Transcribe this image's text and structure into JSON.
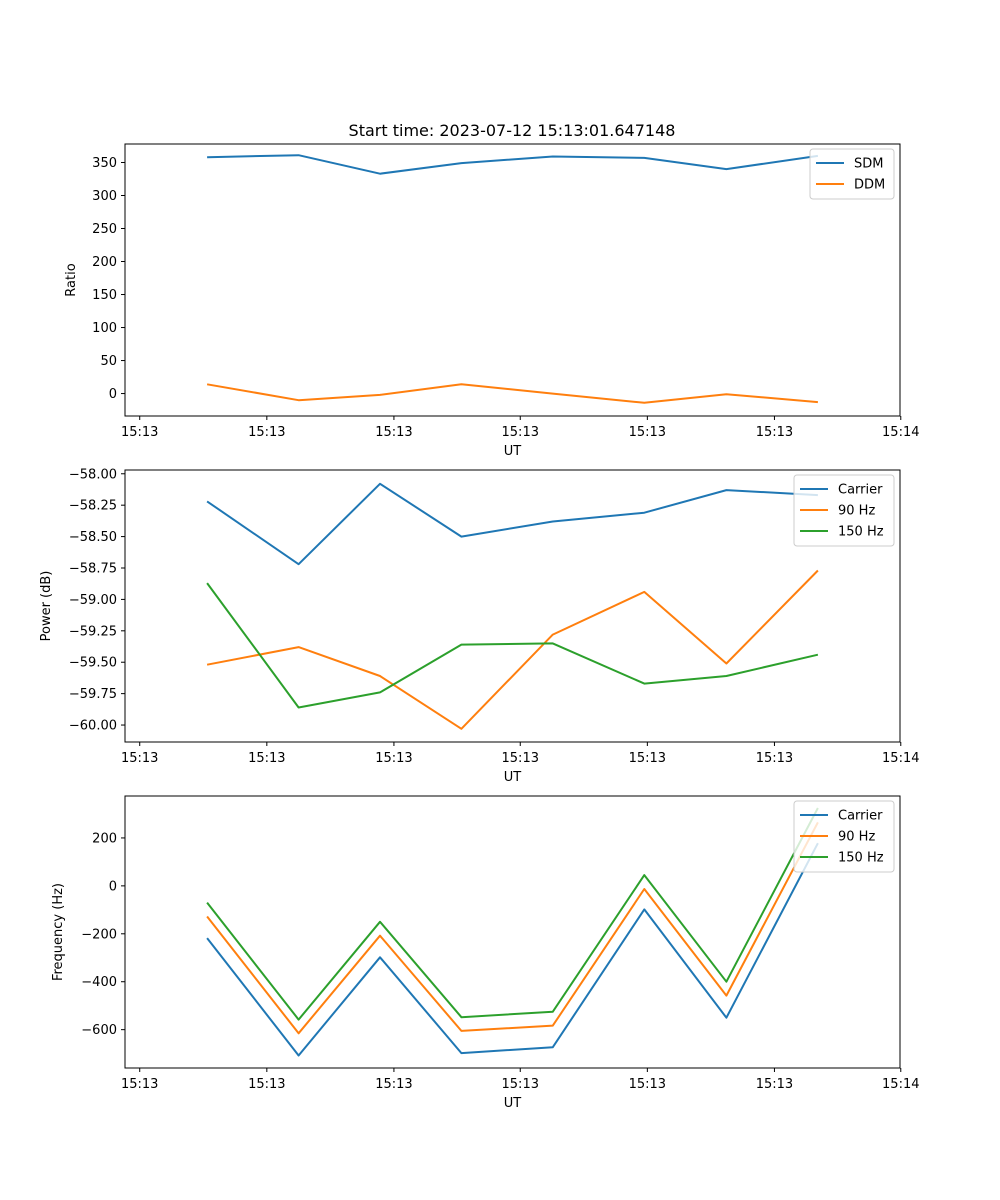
{
  "figure_title": "Start time: 2023-07-12 15:13:01.647148",
  "chart_data": [
    {
      "type": "line",
      "title": "Start time: 2023-07-12 15:13:01.647148",
      "xlabel": "UT",
      "ylabel": "Ratio",
      "xlim": [
        0,
        100
      ],
      "ylim": [
        -34,
        378
      ],
      "x": [
        10.6,
        22.4,
        32.9,
        43.4,
        55.2,
        67.0,
        77.6,
        89.4
      ],
      "xticks": [
        {
          "value": 1.9,
          "label": "15:13"
        },
        {
          "value": 18.3,
          "label": "15:13"
        },
        {
          "value": 34.7,
          "label": "15:13"
        },
        {
          "value": 51.0,
          "label": "15:13"
        },
        {
          "value": 67.4,
          "label": "15:13"
        },
        {
          "value": 83.8,
          "label": "15:13"
        },
        {
          "value": 100.1,
          "label": "15:14"
        }
      ],
      "yticks": [
        {
          "value": 0,
          "label": "0"
        },
        {
          "value": 50,
          "label": "50"
        },
        {
          "value": 100,
          "label": "100"
        },
        {
          "value": 150,
          "label": "150"
        },
        {
          "value": 200,
          "label": "200"
        },
        {
          "value": 250,
          "label": "250"
        },
        {
          "value": 300,
          "label": "300"
        },
        {
          "value": 350,
          "label": "350"
        }
      ],
      "legend_position": "top-right",
      "series": [
        {
          "name": "SDM",
          "color": "#1f77b4",
          "values": [
            358,
            361,
            333,
            349,
            359,
            357,
            340,
            360
          ]
        },
        {
          "name": "DDM",
          "color": "#ff7f0e",
          "values": [
            14,
            -10,
            -2,
            14,
            0,
            -14,
            -1,
            -13
          ]
        }
      ]
    },
    {
      "type": "line",
      "xlabel": "UT",
      "ylabel": "Power (dB)",
      "xlim": [
        0,
        100
      ],
      "ylim": [
        -60.135,
        -57.97
      ],
      "x": [
        10.6,
        22.4,
        32.9,
        43.4,
        55.2,
        67.0,
        77.6,
        89.4
      ],
      "xticks": [
        {
          "value": 1.9,
          "label": "15:13"
        },
        {
          "value": 18.3,
          "label": "15:13"
        },
        {
          "value": 34.7,
          "label": "15:13"
        },
        {
          "value": 51.0,
          "label": "15:13"
        },
        {
          "value": 67.4,
          "label": "15:13"
        },
        {
          "value": 83.8,
          "label": "15:13"
        },
        {
          "value": 100.1,
          "label": "15:14"
        }
      ],
      "yticks": [
        {
          "value": -60.0,
          "label": "−60.00"
        },
        {
          "value": -59.75,
          "label": "−59.75"
        },
        {
          "value": -59.5,
          "label": "−59.50"
        },
        {
          "value": -59.25,
          "label": "−59.25"
        },
        {
          "value": -59.0,
          "label": "−59.00"
        },
        {
          "value": -58.75,
          "label": "−58.75"
        },
        {
          "value": -58.5,
          "label": "−58.50"
        },
        {
          "value": -58.25,
          "label": "−58.25"
        },
        {
          "value": -58.0,
          "label": "−58.00"
        }
      ],
      "legend_position": "top-right",
      "series": [
        {
          "name": "Carrier",
          "color": "#1f77b4",
          "values": [
            -58.22,
            -58.72,
            -58.08,
            -58.5,
            -58.38,
            -58.31,
            -58.13,
            -58.17
          ]
        },
        {
          "name": "90 Hz",
          "color": "#ff7f0e",
          "values": [
            -59.52,
            -59.38,
            -59.61,
            -60.03,
            -59.28,
            -58.94,
            -59.51,
            -58.77
          ]
        },
        {
          "name": "150 Hz",
          "color": "#2ca02c",
          "values": [
            -58.87,
            -59.86,
            -59.74,
            -59.36,
            -59.35,
            -59.67,
            -59.61,
            -59.44
          ]
        }
      ]
    },
    {
      "type": "line",
      "xlabel": "UT",
      "ylabel": "Frequency (Hz)",
      "xlim": [
        0,
        100
      ],
      "ylim": [
        -760,
        375
      ],
      "x": [
        10.6,
        22.4,
        32.9,
        43.4,
        55.2,
        67.0,
        77.6,
        89.4
      ],
      "xticks": [
        {
          "value": 1.9,
          "label": "15:13"
        },
        {
          "value": 18.3,
          "label": "15:13"
        },
        {
          "value": 34.7,
          "label": "15:13"
        },
        {
          "value": 51.0,
          "label": "15:13"
        },
        {
          "value": 67.4,
          "label": "15:13"
        },
        {
          "value": 83.8,
          "label": "15:13"
        },
        {
          "value": 100.1,
          "label": "15:14"
        }
      ],
      "yticks": [
        {
          "value": -600,
          "label": "−600"
        },
        {
          "value": -400,
          "label": "−400"
        },
        {
          "value": -200,
          "label": "−200"
        },
        {
          "value": 0,
          "label": "0"
        },
        {
          "value": 200,
          "label": "200"
        }
      ],
      "legend_position": "top-right",
      "series": [
        {
          "name": "Carrier",
          "color": "#1f77b4",
          "values": [
            -218,
            -708,
            -298,
            -698,
            -673,
            -98,
            -550,
            178
          ]
        },
        {
          "name": "90 Hz",
          "color": "#ff7f0e",
          "values": [
            -128,
            -615,
            -208,
            -605,
            -583,
            -13,
            -458,
            265
          ]
        },
        {
          "name": "150 Hz",
          "color": "#2ca02c",
          "values": [
            -70,
            -558,
            -150,
            -548,
            -525,
            45,
            -400,
            325
          ]
        }
      ]
    }
  ]
}
